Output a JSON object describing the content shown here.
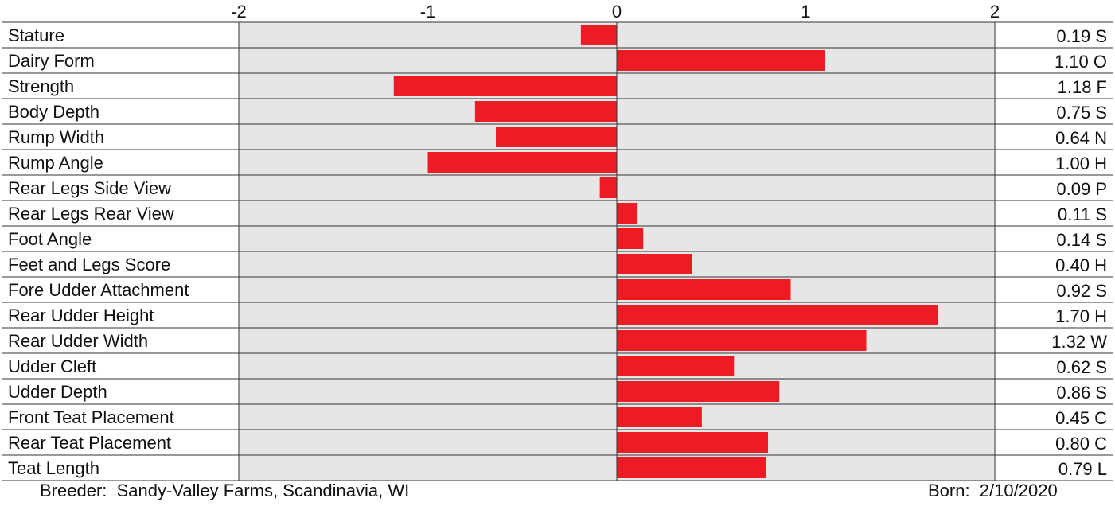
{
  "chart_data": {
    "type": "bar",
    "orientation": "horizontal",
    "xlim": [
      -2,
      2
    ],
    "x_ticks": [
      "-2",
      "-1",
      "0",
      "1",
      "2"
    ],
    "categories": [
      "Stature",
      "Dairy Form",
      "Strength",
      "Body Depth",
      "Rump Width",
      "Rump Angle",
      "Rear Legs Side View",
      "Rear Legs Rear View",
      "Foot Angle",
      "Feet and Legs Score",
      "Fore Udder Attachment",
      "Rear Udder Height",
      "Rear Udder Width",
      "Udder Cleft",
      "Udder Depth",
      "Front Teat Placement",
      "Rear Teat Placement",
      "Teat Length"
    ],
    "values": [
      -0.19,
      1.1,
      -1.18,
      -0.75,
      -0.64,
      -1.0,
      -0.09,
      0.11,
      0.14,
      0.4,
      0.92,
      1.7,
      1.32,
      0.62,
      0.86,
      0.45,
      0.8,
      0.79
    ],
    "value_labels": [
      "0.19 S",
      "1.10 O",
      "1.18 F",
      "0.75 S",
      "0.64 N",
      "1.00 H",
      "0.09 P",
      "0.11 S",
      "0.14 S",
      "0.40 H",
      "0.92 S",
      "1.70 H",
      "1.32 W",
      "0.62 S",
      "0.86 S",
      "0.45 C",
      "0.80 C",
      "0.79 L"
    ],
    "bar_color": "#ed1c24",
    "plot_background": "#e6e6e6",
    "grid": false
  },
  "footer": {
    "breeder": "Breeder:  Sandy-Valley Farms, Scandinavia, WI",
    "born": "Born:  2/10/2020"
  }
}
